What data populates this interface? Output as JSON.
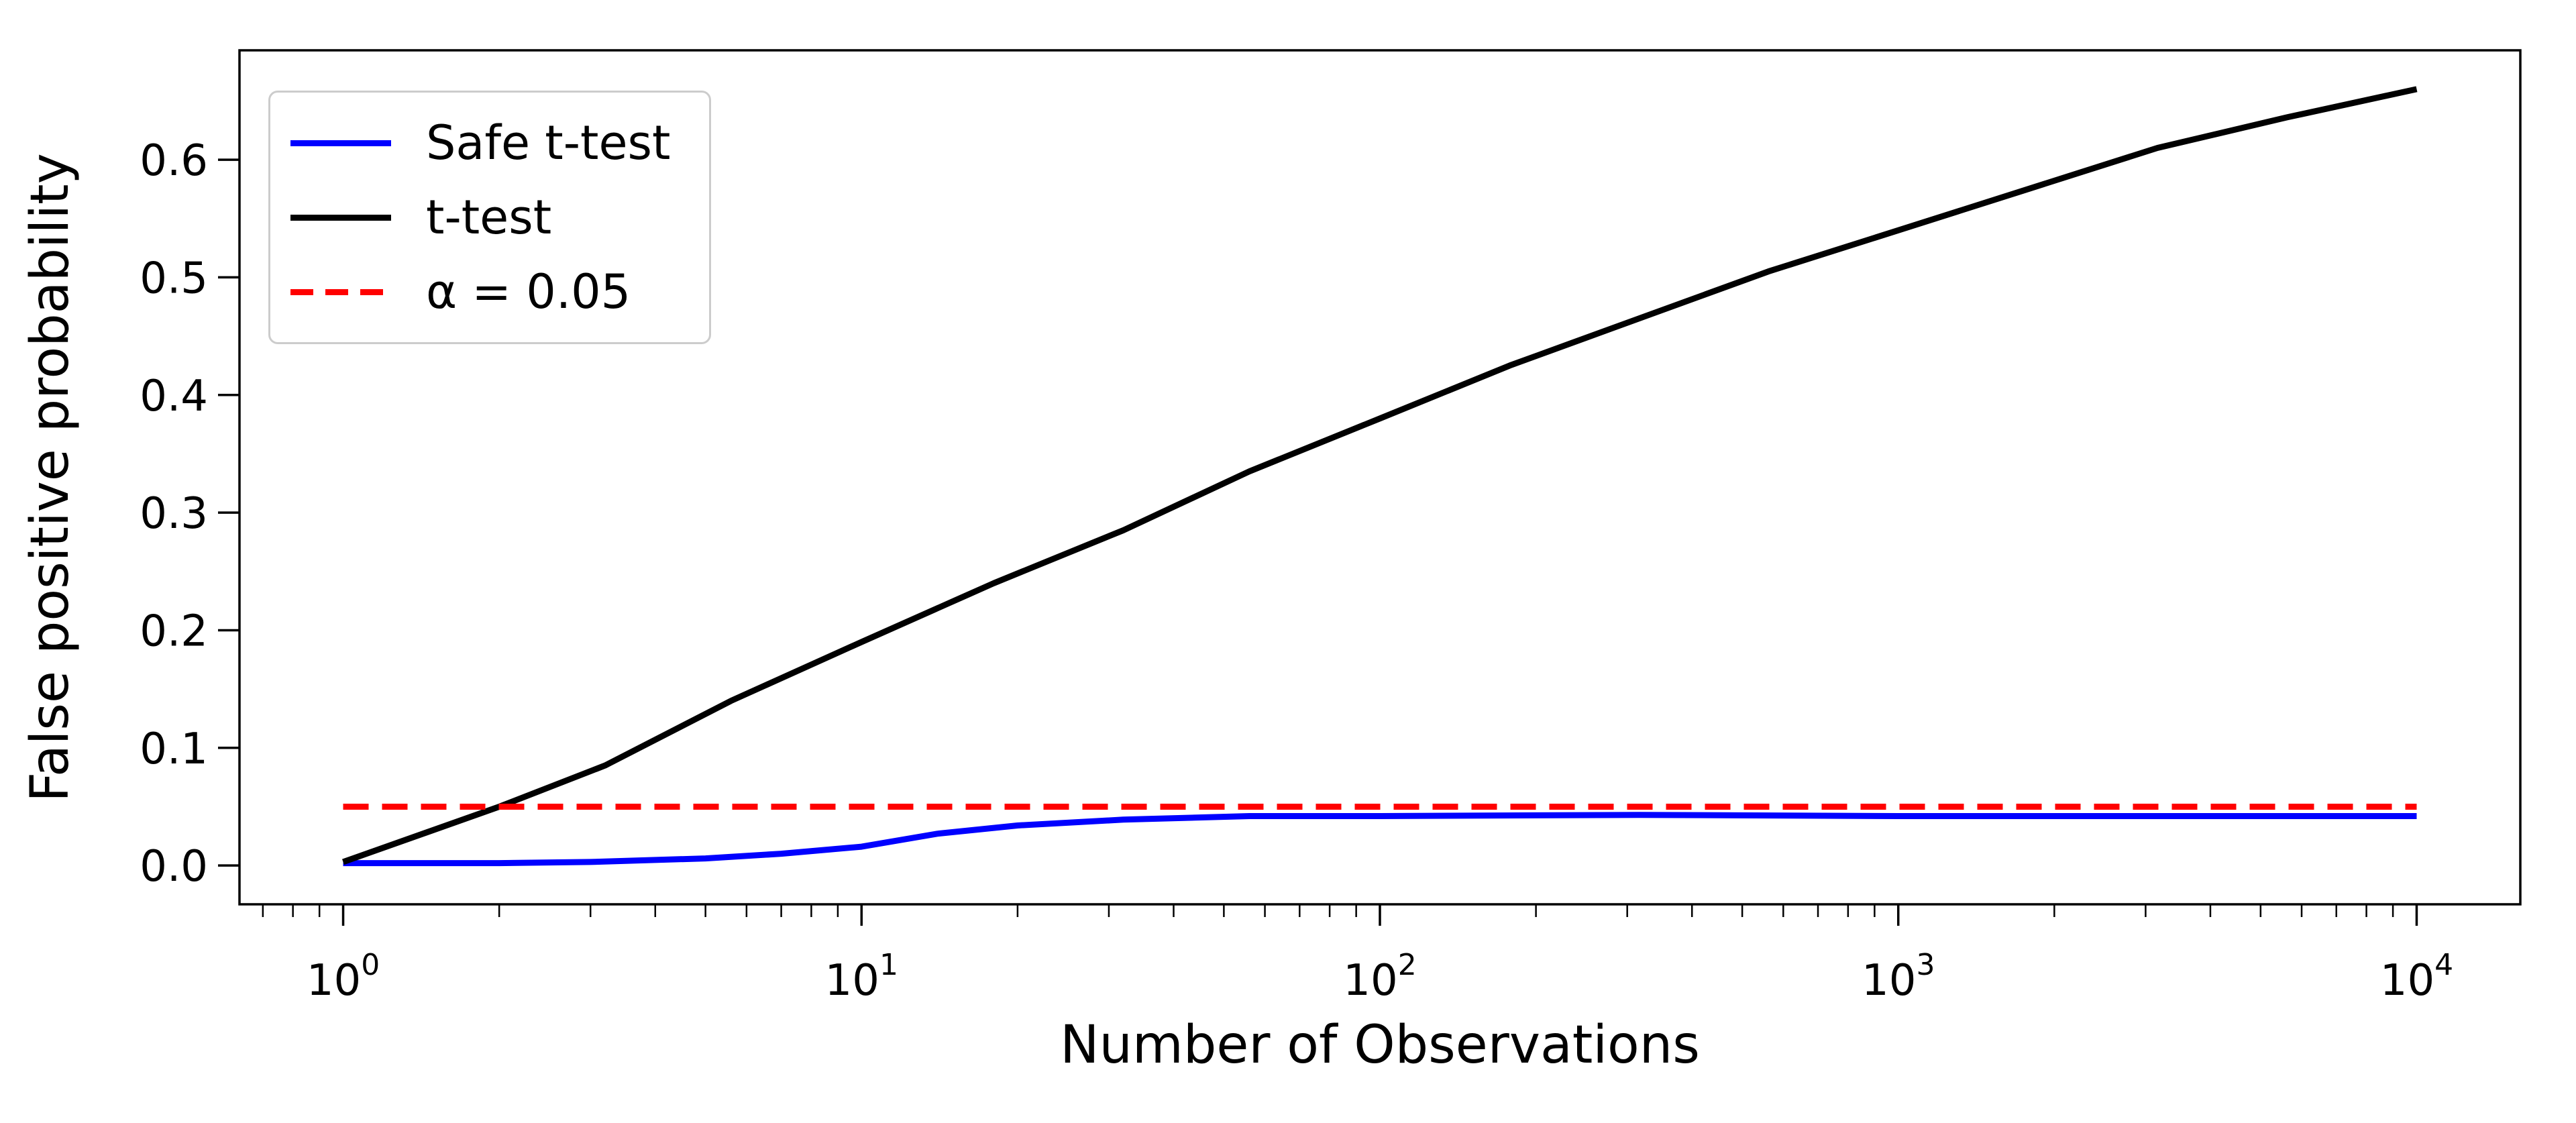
{
  "figure": {
    "xlabel": "Number of Observations",
    "ylabel": "False positive probability",
    "background_color": "#ffffff",
    "spine_color": "#000000"
  },
  "legend": {
    "position": "upper left",
    "border_color": "#cccccc",
    "entries": [
      {
        "label": "Safe t-test",
        "color": "#0000ff",
        "line_style": "solid"
      },
      {
        "label": "t-test",
        "color": "#000000",
        "line_style": "solid"
      },
      {
        "label": "α = 0.05",
        "color": "#ff0000",
        "line_style": "dashed"
      }
    ]
  },
  "chart_data": {
    "type": "line",
    "title": "",
    "xlabel": "Number of Observations",
    "ylabel": "False positive probability",
    "x_scale": "log",
    "y_scale": "linear",
    "xlim_log10": [
      -0.2,
      4.2
    ],
    "ylim": [
      -0.033,
      0.693
    ],
    "grid": false,
    "legend_position": "upper left",
    "x_major_ticks": [
      1,
      10,
      100,
      1000,
      10000
    ],
    "x_tick_labels": [
      "10^0",
      "10^1",
      "10^2",
      "10^3",
      "10^4"
    ],
    "y_ticks": [
      0.0,
      0.1,
      0.2,
      0.3,
      0.4,
      0.5,
      0.6
    ],
    "y_tick_labels": [
      "0.0",
      "0.1",
      "0.2",
      "0.3",
      "0.4",
      "0.5",
      "0.6"
    ],
    "alpha_reference_value": 0.05,
    "series": [
      {
        "name": "Safe t-test",
        "color": "#0000ff",
        "style": "solid",
        "x": [
          1,
          2,
          3,
          5,
          7,
          10,
          14,
          20,
          32,
          56,
          100,
          316,
          1000,
          3162,
          10000
        ],
        "y": [
          0.002,
          0.002,
          0.003,
          0.006,
          0.01,
          0.016,
          0.027,
          0.034,
          0.039,
          0.042,
          0.042,
          0.043,
          0.042,
          0.042,
          0.042
        ]
      },
      {
        "name": "t-test",
        "color": "#000000",
        "style": "solid",
        "x": [
          1,
          2,
          3.2,
          5.6,
          10,
          18,
          32,
          56,
          100,
          178,
          316,
          562,
          1000,
          1778,
          3162,
          5623,
          10000
        ],
        "y": [
          0.003,
          0.05,
          0.085,
          0.14,
          0.19,
          0.24,
          0.285,
          0.335,
          0.38,
          0.425,
          0.465,
          0.505,
          0.54,
          0.575,
          0.61,
          0.636,
          0.66
        ]
      },
      {
        "name": "α = 0.05",
        "color": "#ff0000",
        "style": "dashed",
        "x": [
          1,
          10000
        ],
        "y": [
          0.05,
          0.05
        ]
      }
    ]
  }
}
